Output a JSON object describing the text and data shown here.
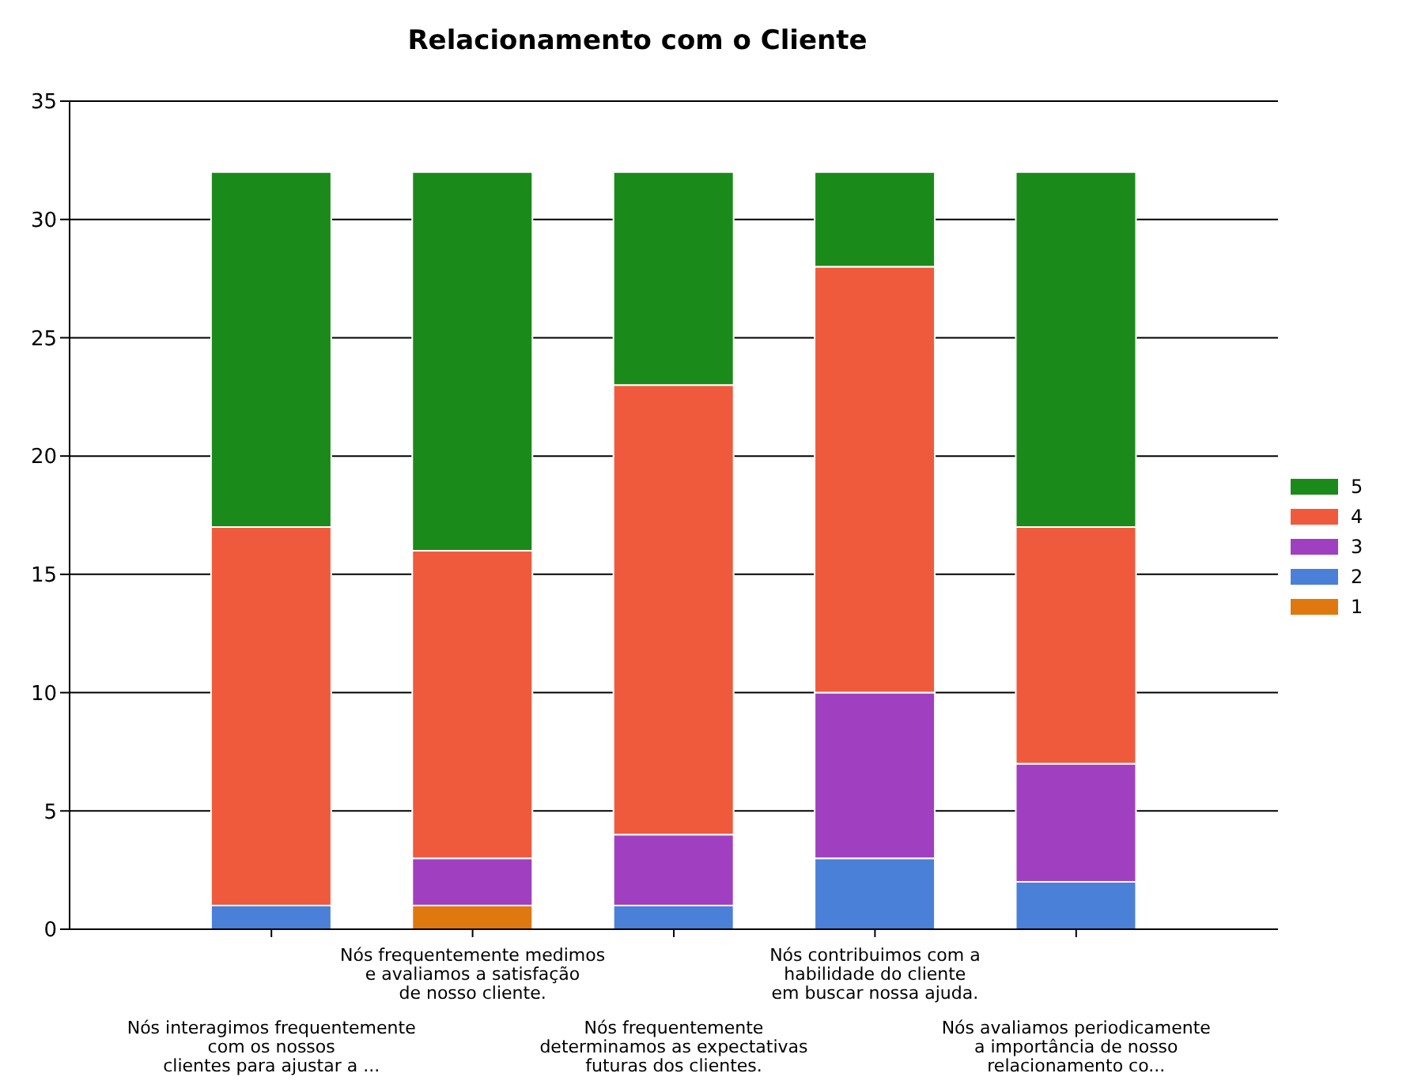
{
  "chart_data": {
    "type": "bar",
    "title": "Relacionamento com o Cliente",
    "stacked": true,
    "categories": [
      "Nós interagimos frequentemente\ncom os nossos\nclientes para ajustar a ...",
      "Nós frequentemente medimos\ne avaliamos a satisfação\nde nosso cliente.",
      "Nós frequentemente\ndeterminamos as expectativas\nfuturas dos clientes.",
      "Nós contribuimos com a\nhabilidade do cliente\nem buscar nossa ajuda.",
      "Nós avaliamos periodicamente\na importância de nosso\nrelacionamento co..."
    ],
    "series": [
      {
        "name": "1",
        "color": "#e07810",
        "values": [
          0,
          1,
          0,
          0,
          0
        ]
      },
      {
        "name": "2",
        "color": "#4a80d8",
        "values": [
          1,
          0,
          1,
          3,
          2
        ]
      },
      {
        "name": "3",
        "color": "#a040c0",
        "values": [
          0,
          2,
          3,
          7,
          5
        ]
      },
      {
        "name": "4",
        "color": "#f05a3c",
        "values": [
          16,
          13,
          19,
          18,
          10
        ]
      },
      {
        "name": "5",
        "color": "#1a8a1a",
        "values": [
          15,
          16,
          9,
          4,
          15
        ]
      }
    ],
    "ylim": [
      0,
      35
    ],
    "yticks": [
      0,
      5,
      10,
      15,
      20,
      25,
      30,
      35
    ],
    "grid": "y",
    "legend": "right"
  }
}
